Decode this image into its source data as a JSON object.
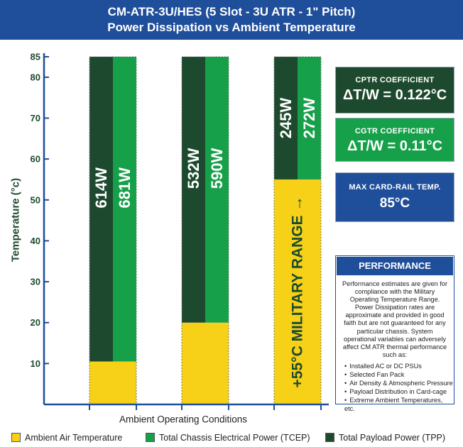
{
  "chart_data": {
    "type": "bar",
    "title": "CM-ATR-3U/HES (5 Slot - 3U ATR - 1\" Pitch)",
    "subtitle": "Power Dissipation vs Ambient Temperature",
    "xlabel": "Ambient Operating Conditions",
    "ylabel": "Temperature (°c)",
    "ylim": [
      0,
      85
    ],
    "yticks": [
      10,
      20,
      30,
      40,
      50,
      60,
      70,
      80,
      85
    ],
    "grid": false,
    "legend_position": "bottom",
    "groups": [
      {
        "ambient_temperature": 10.5,
        "top_temperature": 85,
        "tpp_label": "614W",
        "tcep_label": "681W",
        "military": false
      },
      {
        "ambient_temperature": 20,
        "top_temperature": 85,
        "tpp_label": "532W",
        "tcep_label": "590W",
        "military": false
      },
      {
        "ambient_temperature": 55,
        "top_temperature": 85,
        "tpp_label": "245W",
        "tcep_label": "272W",
        "military": true
      }
    ],
    "military_label": "+55°C MILITARY RANGE →",
    "series": [
      {
        "name": "Ambient Air Temperature",
        "color": "#f7d117"
      },
      {
        "name": "Total Chassis Electrical Power (TCEP)",
        "color": "#16a04a"
      },
      {
        "name": "Total Payload Power (TPP)",
        "color": "#1d4a2e"
      }
    ],
    "axis_color": "#1f4e9b",
    "label_color": "#1d4a2e"
  },
  "side_boxes": {
    "cptr": {
      "title": "CPTR COEFFICIENT",
      "value": "ΔT/W = 0.122°C"
    },
    "cgtr": {
      "title": "CGTR COEFFICIENT",
      "value": "ΔT/W = 0.11°C"
    },
    "max_rail": {
      "title": "MAX CARD-RAIL TEMP.",
      "value": "85°C"
    }
  },
  "performance": {
    "title": "PERFORMANCE",
    "body": "Performance estimates are given for compliance with the Military Operating Temperature Range. Power Dissipation rates are approximate and provided in good faith but are not guaranteed for any particular chassis. System operational variables can adversely affect CM ATR thermal performance such as:",
    "items": [
      "Installed AC or DC PSUs",
      "Selected Fan Pack",
      "Air Density & Atmospheric Pressure",
      "Payload Distribution in Card-cage",
      "Extreme Ambient Temperatures, etc."
    ]
  }
}
